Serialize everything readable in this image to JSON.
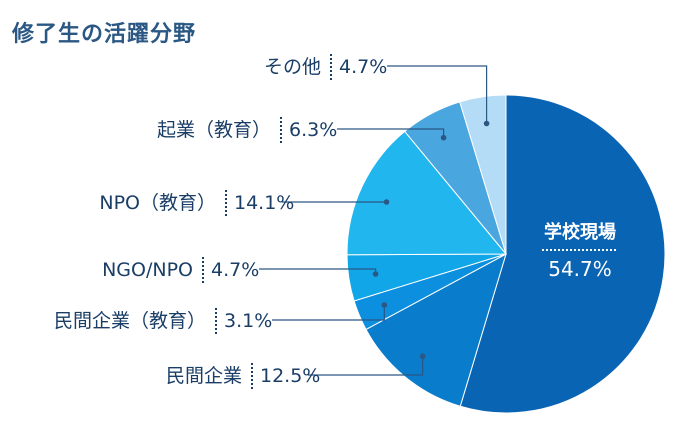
{
  "chart_data": {
    "type": "pie",
    "title": "修了生の活躍分野",
    "slices": [
      {
        "label": "学校現場",
        "value": 54.7,
        "value_label": "54.7%",
        "color": "#0a64b4"
      },
      {
        "label": "民間企業",
        "value": 12.5,
        "value_label": "12.5%",
        "color": "#0a7ccc"
      },
      {
        "label": "民間企業（教育）",
        "value": 3.1,
        "value_label": "3.1%",
        "color": "#0c8fdf"
      },
      {
        "label": "NGO/NPO",
        "value": 4.7,
        "value_label": "4.7%",
        "color": "#10a6e8"
      },
      {
        "label": "NPO（教育）",
        "value": 14.1,
        "value_label": "14.1%",
        "color": "#22b6ef"
      },
      {
        "label": "起業（教育）",
        "value": 6.3,
        "value_label": "6.3%",
        "color": "#4aa6de"
      },
      {
        "label": "その他",
        "value": 4.7,
        "value_label": "4.7%",
        "color": "#b5dcf6"
      }
    ],
    "start_direction": "12 o'clock",
    "order": "clockwise",
    "callout_color": "#2a5783",
    "label_color": "#1a3e66",
    "inside_label_color": "#ffffff"
  }
}
